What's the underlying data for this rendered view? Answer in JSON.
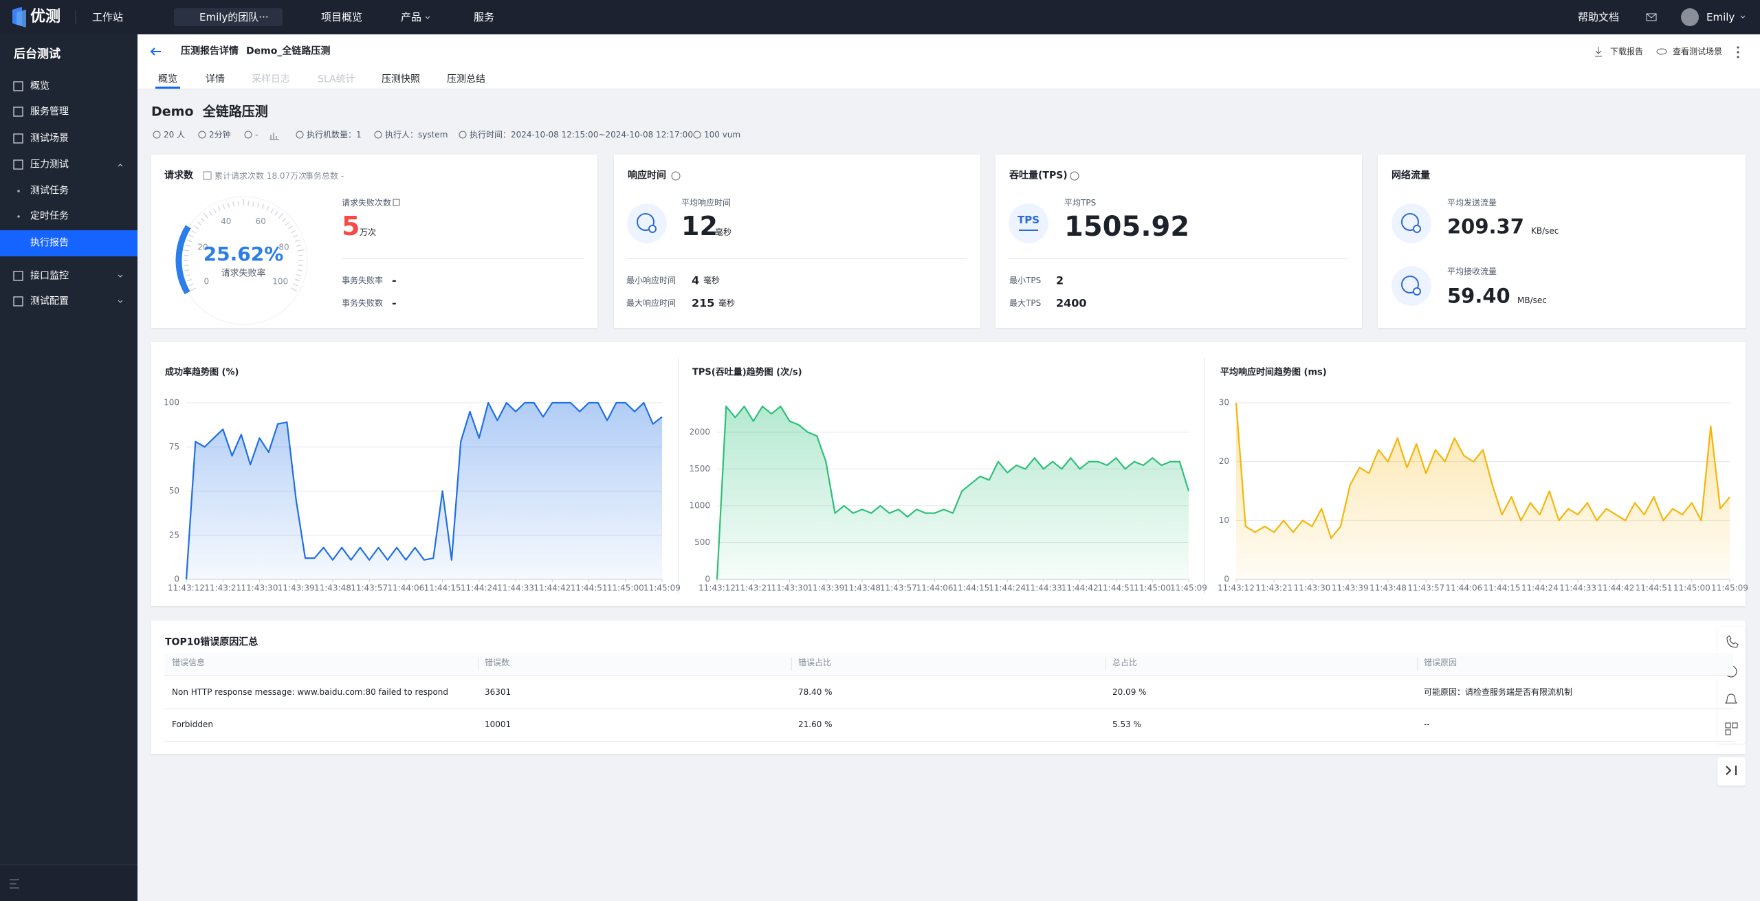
{
  "topbar": {
    "logo": "优测",
    "workspace": "工作站",
    "team": "Emily的团队···",
    "nav": [
      "项目概览",
      "产品",
      "服务"
    ],
    "help": "帮助文档",
    "user": "Emily"
  },
  "sidebar": {
    "title": "后台测试",
    "items": [
      "概览",
      "服务管理",
      "测试场景",
      "压力测试",
      "测试任务",
      "定时任务",
      "执行报告",
      "接口监控",
      "测试配置"
    ],
    "active": 6
  },
  "header": {
    "breadcrumb": "压测报告详情",
    "report": "Demo_全链路压测",
    "actions": [
      "下载报告",
      "查看测试场景"
    ],
    "tabs": [
      "概览",
      "详情",
      "采样日志",
      "SLA统计",
      "压测快照",
      "压测总结"
    ]
  },
  "summary": {
    "title": "Demo  全链路压测",
    "meta": [
      "20 人",
      "2分钟",
      "-",
      "执行机数量：1",
      "执行人：system",
      "执行时间：2024-10-08 12:15:00~2024-10-08 12:17:00",
      "100 vum"
    ]
  },
  "cards": {
    "requests": {
      "title": "请求数",
      "total": "累计请求次数 18.07万次",
      "transactions": "事务总数 -",
      "gauge": {
        "value": 25.62,
        "label": "25.62%",
        "caption": "请求失败率",
        "ticks": [
          0,
          20,
          40,
          60,
          80,
          100
        ]
      },
      "fail_label": "请求失败次数",
      "fail_value": "5",
      "fail_unit": "万次",
      "rows": [
        {
          "label": "事务失败率",
          "value": "-"
        },
        {
          "label": "事务失败数",
          "value": "-"
        }
      ]
    },
    "response": {
      "title": "响应时间",
      "avg_label": "平均响应时间",
      "avg": "12",
      "unit": "毫秒",
      "rows": [
        {
          "label": "最小响应时间",
          "value": "4",
          "unit": "毫秒"
        },
        {
          "label": "最大响应时间",
          "value": "215",
          "unit": "毫秒"
        }
      ]
    },
    "tps": {
      "title": "吞吐量(TPS)",
      "icon": "TPS",
      "avg_label": "平均TPS",
      "avg": "1505.92",
      "rows": [
        {
          "label": "最小TPS",
          "value": "2"
        },
        {
          "label": "最大TPS",
          "value": "2400"
        }
      ]
    },
    "network": {
      "title": "网络流量",
      "rows": [
        {
          "label": "平均发送流量",
          "value": "209.37",
          "unit": "KB/sec"
        },
        {
          "label": "平均接收流量",
          "value": "59.40",
          "unit": "MB/sec"
        }
      ]
    }
  },
  "chart_data": [
    {
      "type": "area",
      "title": "成功率趋势图 (%)",
      "categories": [
        "11:43:12",
        null,
        null,
        null,
        "11:43:21",
        null,
        null,
        null,
        "11:43:30",
        null,
        null,
        null,
        "11:43:39",
        null,
        null,
        null,
        "11:43:48",
        null,
        null,
        null,
        "11:43:57",
        null,
        null,
        null,
        "11:44:06",
        null,
        null,
        null,
        "11:44:15",
        null,
        null,
        null,
        "11:44:24",
        null,
        null,
        null,
        "11:44:33",
        null,
        null,
        null,
        "11:44:42",
        null,
        null,
        null,
        "11:44:51",
        null,
        null,
        null,
        "11:45:00",
        null,
        null,
        null,
        "11:45:09"
      ],
      "values": [
        0,
        78,
        75,
        80,
        85,
        70,
        82,
        65,
        80,
        72,
        88,
        89,
        45,
        12,
        12,
        18,
        11,
        18,
        11,
        18,
        11,
        18,
        11,
        18,
        11,
        18,
        11,
        12,
        50,
        11,
        78,
        95,
        80,
        100,
        90,
        100,
        95,
        100,
        100,
        92,
        100,
        100,
        100,
        95,
        100,
        100,
        90,
        100,
        100,
        95,
        100,
        88,
        92
      ],
      "color": "#1f6fe5",
      "ylim": [
        0,
        100
      ],
      "yticks": [
        0,
        25,
        50,
        75,
        100
      ],
      "grid": true
    },
    {
      "type": "area",
      "title": "TPS(吞吐量)趋势图 (次/s)",
      "categories": [
        "11:43:12",
        null,
        null,
        null,
        "11:43:21",
        null,
        null,
        null,
        "11:43:30",
        null,
        null,
        null,
        "11:43:39",
        null,
        null,
        null,
        "11:43:48",
        null,
        null,
        null,
        "11:43:57",
        null,
        null,
        null,
        "11:44:06",
        null,
        null,
        null,
        "11:44:15",
        null,
        null,
        null,
        "11:44:24",
        null,
        null,
        null,
        "11:44:33",
        null,
        null,
        null,
        "11:44:42",
        null,
        null,
        null,
        "11:44:51",
        null,
        null,
        null,
        "11:45:00",
        null,
        null,
        null,
        "11:45:09"
      ],
      "values": [
        0,
        2350,
        2200,
        2350,
        2150,
        2350,
        2250,
        2350,
        2150,
        2100,
        2000,
        1950,
        1600,
        900,
        1000,
        900,
        950,
        900,
        1000,
        900,
        950,
        850,
        950,
        900,
        900,
        950,
        900,
        1200,
        1300,
        1400,
        1350,
        1600,
        1450,
        1550,
        1500,
        1650,
        1500,
        1600,
        1500,
        1650,
        1500,
        1600,
        1600,
        1550,
        1650,
        1500,
        1600,
        1550,
        1650,
        1550,
        1600,
        1600,
        1200
      ],
      "color": "#2cc07a",
      "ylim": [
        0,
        2400
      ],
      "yticks": [
        0,
        500,
        1000,
        1500,
        2000
      ],
      "grid": true
    },
    {
      "type": "area",
      "title": "平均响应时间趋势图 (ms)",
      "categories": [
        "11:43:12",
        null,
        null,
        null,
        "11:43:21",
        null,
        null,
        null,
        "11:43:30",
        null,
        null,
        null,
        "11:43:39",
        null,
        null,
        null,
        "11:43:48",
        null,
        null,
        null,
        "11:43:57",
        null,
        null,
        null,
        "11:44:06",
        null,
        null,
        null,
        "11:44:15",
        null,
        null,
        null,
        "11:44:24",
        null,
        null,
        null,
        "11:44:33",
        null,
        null,
        null,
        "11:44:42",
        null,
        null,
        null,
        "11:44:51",
        null,
        null,
        null,
        "11:45:00",
        null,
        null,
        null,
        "11:45:09"
      ],
      "values": [
        30,
        9,
        8,
        9,
        8,
        10,
        8,
        10,
        9,
        12,
        7,
        9,
        16,
        19,
        18,
        22,
        20,
        24,
        19,
        23,
        18,
        22,
        20,
        24,
        21,
        20,
        22,
        16,
        11,
        14,
        10,
        13,
        11,
        15,
        10,
        12,
        11,
        13,
        10,
        12,
        11,
        10,
        13,
        11,
        14,
        10,
        12,
        11,
        13,
        10,
        26,
        12,
        14
      ],
      "color": "#f5b50a",
      "ylim": [
        0,
        30
      ],
      "yticks": [
        0,
        10,
        20,
        30
      ],
      "grid": true
    }
  ],
  "table": {
    "title": "TOP10错误原因汇总",
    "columns": [
      "错误信息",
      "错误数",
      "错误占比",
      "总占比",
      "错误原因"
    ],
    "rows": [
      [
        "Non HTTP response message: www.baidu.com:80 failed to respond",
        "36301",
        "78.40 %",
        "20.09 %",
        "可能原因：请检查服务端是否有限流机制"
      ],
      [
        "Forbidden",
        "10001",
        "21.60 %",
        "5.53 %",
        "--"
      ]
    ]
  }
}
